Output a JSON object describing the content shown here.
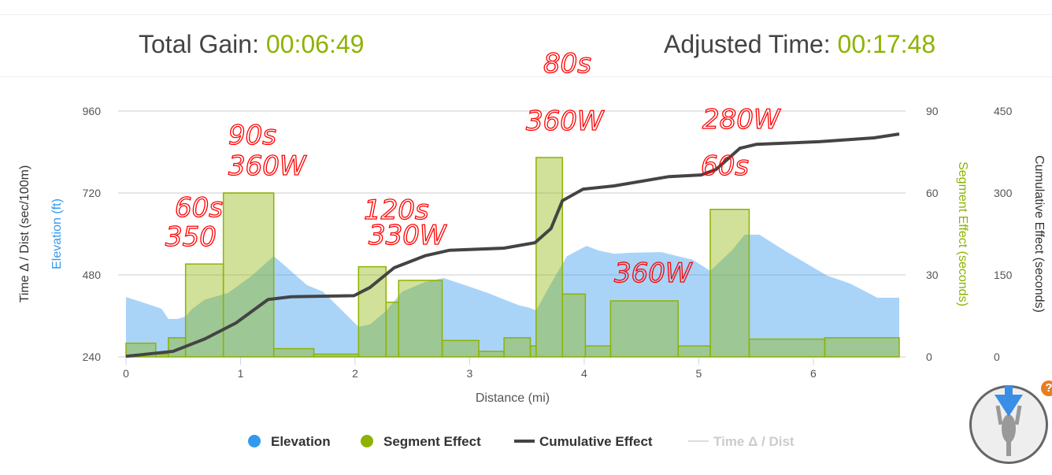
{
  "header": {
    "gain_label": "Total Gain:",
    "gain_value": "00:06:49",
    "adjusted_label": "Adjusted Time:",
    "adjusted_value": "00:17:48"
  },
  "colors": {
    "elevation": "#3399ee",
    "segment": "#8db300",
    "cumulative": "#444444",
    "accent": "#8db300",
    "annotation": "#ff0000"
  },
  "annotations": [
    "90s",
    "360W",
    "60s",
    "350",
    "120s",
    "330W",
    "80s",
    "360W",
    "280W",
    "60s",
    "360W"
  ],
  "chart_data": {
    "type": "area",
    "xlabel": "Distance (mi)",
    "xlim": [
      0,
      6.75
    ],
    "xticks": [
      "0",
      "1",
      "2",
      "3",
      "4",
      "5",
      "6"
    ],
    "y_axes": [
      {
        "label": "Time Δ / Dist (sec/100m)",
        "side": "left-outer"
      },
      {
        "label": "Elevation (ft)",
        "side": "left",
        "lim": [
          240,
          960
        ],
        "ticks": [
          "240",
          "480",
          "720",
          "960"
        ]
      },
      {
        "label": "Segment Effect (seconds)",
        "side": "right",
        "lim": [
          0,
          90
        ],
        "ticks": [
          "0",
          "30",
          "60",
          "90"
        ]
      },
      {
        "label": "Cumulative Effect (seconds)",
        "side": "right-outer",
        "lim": [
          0,
          450
        ],
        "ticks": [
          "0",
          "150",
          "300",
          "450"
        ]
      }
    ],
    "grid": true,
    "legend": "bottom",
    "legend_items": [
      "Elevation",
      "Segment Effect",
      "Cumulative Effect",
      "Time Δ / Dist"
    ],
    "elevation": {
      "x": [
        0,
        0.17,
        0.31,
        0.37,
        0.45,
        0.52,
        0.58,
        0.69,
        0.89,
        1.1,
        1.29,
        1.37,
        1.58,
        1.72,
        2.03,
        2.13,
        2.27,
        2.41,
        2.61,
        2.77,
        2.96,
        3.16,
        3.3,
        3.44,
        3.51,
        3.58,
        3.71,
        3.85,
        4.02,
        4.12,
        4.26,
        4.4,
        4.67,
        4.95,
        5.1,
        5.29,
        5.4,
        5.53,
        5.77,
        6.12,
        6.32,
        6.56,
        6.75
      ],
      "y": [
        415,
        397,
        381,
        351,
        351,
        358,
        381,
        408,
        427,
        478,
        535,
        512,
        450,
        431,
        328,
        335,
        374,
        431,
        459,
        471,
        450,
        427,
        408,
        390,
        385,
        376,
        455,
        535,
        565,
        552,
        542,
        545,
        547,
        524,
        492,
        552,
        598,
        598,
        547,
        478,
        455,
        413,
        413
      ]
    },
    "segment_effect": {
      "edges": [
        0,
        0.26,
        0.37,
        0.52,
        0.85,
        1.29,
        1.64,
        2.03,
        2.27,
        2.38,
        2.76,
        3.08,
        3.3,
        3.53,
        3.58,
        3.81,
        4.01,
        4.23,
        4.82,
        5.1,
        5.44,
        6.1,
        6.75
      ],
      "values": [
        5,
        1,
        7,
        34,
        60,
        3,
        1,
        33,
        20,
        28,
        6,
        2,
        7,
        4,
        73,
        23,
        4,
        20.5,
        4,
        54,
        6.5,
        7
      ]
    },
    "cumulative_effect": {
      "x": [
        0,
        0.41,
        0.69,
        0.96,
        1.24,
        1.44,
        1.99,
        2.13,
        2.34,
        2.61,
        2.82,
        3.3,
        3.57,
        3.71,
        3.81,
        3.99,
        4.26,
        4.74,
        5.02,
        5.15,
        5.36,
        5.5,
        6.05,
        6.53,
        6.75
      ],
      "y": [
        1,
        10,
        33,
        62,
        105,
        110,
        112,
        127,
        163,
        185,
        195,
        199,
        209,
        235,
        286,
        307,
        313,
        330,
        333,
        343,
        382,
        389,
        394,
        401,
        408
      ]
    }
  }
}
